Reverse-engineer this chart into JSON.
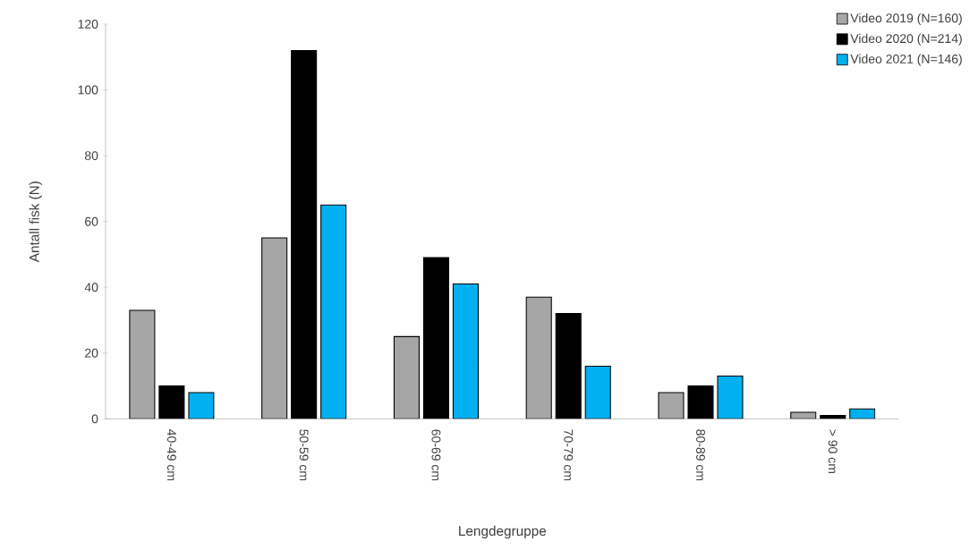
{
  "chart_data": {
    "type": "bar",
    "xlabel": "Lengdegruppe",
    "ylabel": "Antall fisk (N)",
    "categories": [
      "40-49 cm",
      "50-59 cm",
      "60-69 cm",
      "70-79 cm",
      "80-89 cm",
      "> 90 cm"
    ],
    "series": [
      {
        "name": "Video 2019 (N=160)",
        "color": "#a6a6a6",
        "values": [
          33,
          55,
          25,
          37,
          8,
          2
        ]
      },
      {
        "name": "Video 2020 (N=214)",
        "color": "#000000",
        "values": [
          10,
          112,
          49,
          32,
          10,
          1
        ]
      },
      {
        "name": "Video 2021 (N=146)",
        "color": "#00b0f0",
        "values": [
          8,
          65,
          41,
          16,
          13,
          3
        ]
      }
    ],
    "ylim": [
      0,
      120
    ],
    "yticks": [
      0,
      20,
      40,
      60,
      80,
      100,
      120
    ],
    "legend": "top right",
    "grid": false
  }
}
